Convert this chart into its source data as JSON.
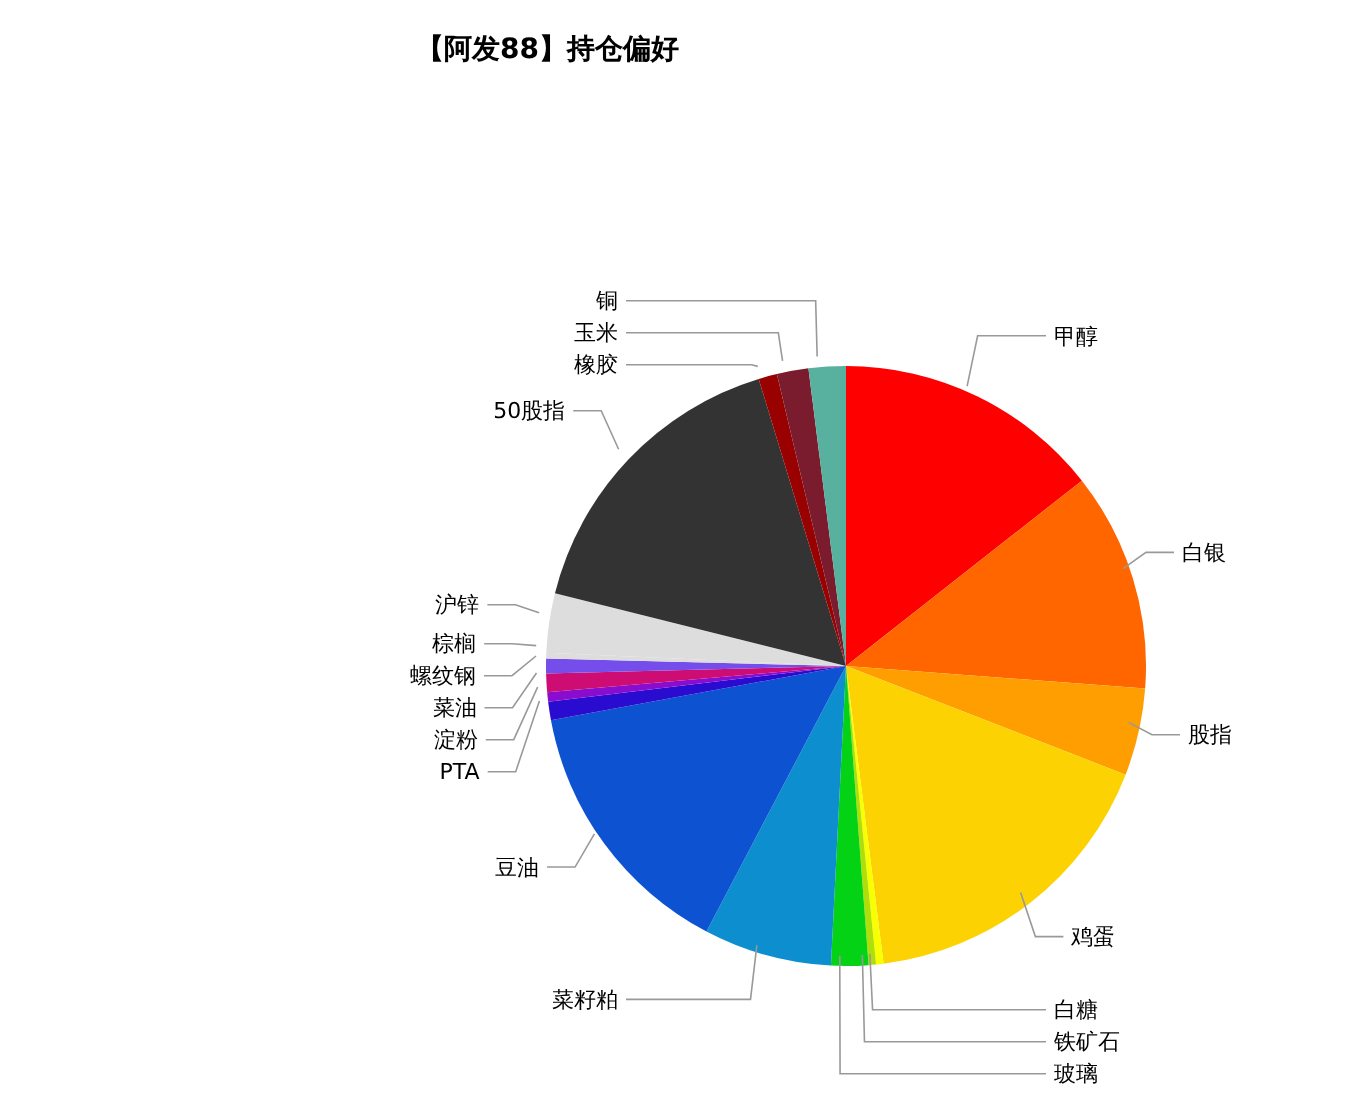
{
  "chart_data": {
    "type": "pie",
    "title": "【阿发88】持仓偏好",
    "categories": [
      "甲醇",
      "白银",
      "股指",
      "鸡蛋",
      "白糖",
      "铁矿石",
      "玻璃",
      "菜籽粕",
      "豆油",
      "PTA",
      "淀粉",
      "菜油",
      "螺纹钢",
      "棕榈",
      "沪锌",
      "50股指",
      "橡胶",
      "玉米",
      "铜"
    ],
    "values": [
      14.4,
      11.8,
      4.7,
      17.1,
      0.4,
      0.4,
      2.0,
      6.9,
      14.4,
      1.0,
      0.5,
      1.0,
      0.8,
      0.3,
      3.2,
      16.4,
      1.0,
      1.7,
      2.0
    ],
    "colors": [
      "#ff0000",
      "#ff6600",
      "#ff9e01",
      "#fcd202",
      "#f8ff01",
      "#b0de09",
      "#04d215",
      "#0d8ecf",
      "#0d52d1",
      "#2a0cd0",
      "#8a0ccf",
      "#cd0d74",
      "#754deb",
      "#dddddd",
      "#dddddd",
      "#333333",
      "#990000",
      "#7a1c2e",
      "#58b19f"
    ]
  }
}
